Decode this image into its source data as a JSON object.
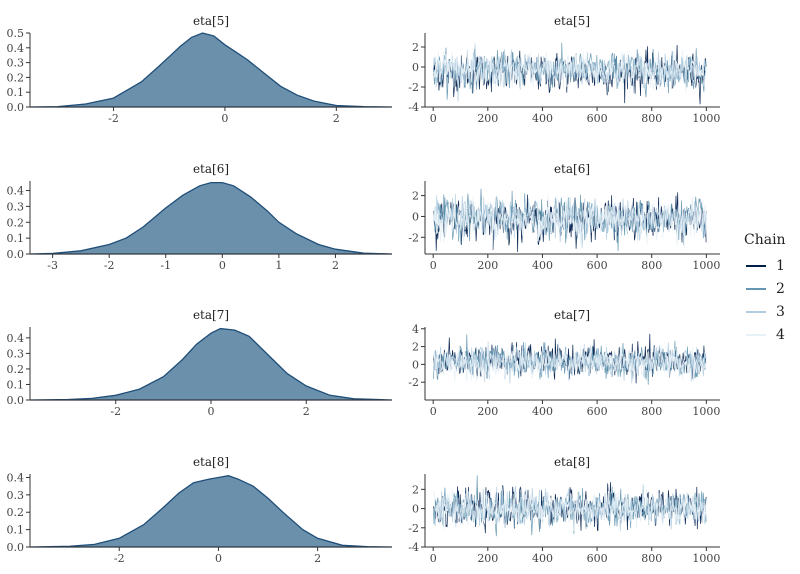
{
  "legend": {
    "title": "Chain",
    "entries": [
      {
        "label": "1",
        "color": "#011f4b"
      },
      {
        "label": "2",
        "color": "#6497b1"
      },
      {
        "label": "3",
        "color": "#b3cde0"
      },
      {
        "label": "4",
        "color": "#e6f0f7"
      }
    ]
  },
  "colors": {
    "density_fill": "#6b90ab",
    "density_line": "#1f4e79",
    "axis": "#333333"
  },
  "chart_data": [
    {
      "type": "area",
      "kind": "density",
      "title": "eta[5]",
      "xlim": [
        -3.5,
        3.0
      ],
      "ylim": [
        0,
        0.5
      ],
      "xticks": [
        -2,
        0,
        2
      ],
      "yticks": [
        0.0,
        0.1,
        0.2,
        0.3,
        0.4,
        0.5
      ],
      "x": [
        -3.5,
        -3,
        -2.5,
        -2,
        -1.5,
        -1.2,
        -1,
        -0.8,
        -0.6,
        -0.4,
        -0.2,
        0,
        0.2,
        0.4,
        0.7,
        1,
        1.3,
        1.6,
        2,
        2.5,
        3
      ],
      "y": [
        0,
        0.003,
        0.02,
        0.06,
        0.17,
        0.27,
        0.34,
        0.41,
        0.47,
        0.5,
        0.48,
        0.42,
        0.37,
        0.32,
        0.23,
        0.14,
        0.08,
        0.04,
        0.01,
        0.002,
        0
      ]
    },
    {
      "type": "line",
      "kind": "trace",
      "title": "eta[5]",
      "xlim": [
        -30,
        1050
      ],
      "ylim": [
        -4,
        3.4
      ],
      "xticks": [
        0,
        200,
        400,
        600,
        800,
        1000
      ],
      "yticks": [
        -4,
        -2,
        0,
        2
      ],
      "n_iter": 1000,
      "center": [
        -0.6,
        -0.3,
        -0.2,
        -0.4
      ],
      "spread": [
        0.9,
        0.85,
        0.8,
        0.8
      ]
    },
    {
      "type": "area",
      "kind": "density",
      "title": "eta[6]",
      "xlim": [
        -3.4,
        3.0
      ],
      "ylim": [
        0,
        0.46
      ],
      "xticks": [
        -3,
        -2,
        -1,
        0,
        1,
        2
      ],
      "yticks": [
        0.0,
        0.1,
        0.2,
        0.3,
        0.4
      ],
      "x": [
        -3.4,
        -3,
        -2.5,
        -2,
        -1.7,
        -1.4,
        -1,
        -0.7,
        -0.4,
        -0.2,
        0,
        0.2,
        0.5,
        0.8,
        1,
        1.3,
        1.7,
        2,
        2.5,
        3
      ],
      "y": [
        0,
        0.004,
        0.02,
        0.06,
        0.1,
        0.17,
        0.29,
        0.37,
        0.43,
        0.45,
        0.45,
        0.43,
        0.36,
        0.27,
        0.2,
        0.13,
        0.06,
        0.03,
        0.005,
        0
      ]
    },
    {
      "type": "line",
      "kind": "trace",
      "title": "eta[6]",
      "xlim": [
        -30,
        1050
      ],
      "ylim": [
        -3.6,
        3.4
      ],
      "xticks": [
        0,
        200,
        400,
        600,
        800,
        1000
      ],
      "yticks": [
        -2,
        0,
        2
      ],
      "n_iter": 1000,
      "center": [
        -0.3,
        -0.2,
        -0.1,
        -0.3
      ],
      "spread": [
        0.9,
        0.9,
        0.85,
        0.85
      ]
    },
    {
      "type": "area",
      "kind": "density",
      "title": "eta[7]",
      "xlim": [
        -3.8,
        3.8
      ],
      "ylim": [
        0,
        0.47
      ],
      "xticks": [
        -2,
        0,
        2
      ],
      "yticks": [
        0.0,
        0.1,
        0.2,
        0.3,
        0.4
      ],
      "x": [
        -3.8,
        -3,
        -2.5,
        -2,
        -1.5,
        -1,
        -0.6,
        -0.3,
        0,
        0.2,
        0.5,
        0.8,
        1,
        1.3,
        1.6,
        2,
        2.5,
        3,
        3.8
      ],
      "y": [
        0,
        0.003,
        0.01,
        0.03,
        0.07,
        0.15,
        0.26,
        0.36,
        0.43,
        0.46,
        0.45,
        0.41,
        0.35,
        0.26,
        0.17,
        0.09,
        0.03,
        0.008,
        0
      ]
    },
    {
      "type": "line",
      "kind": "trace",
      "title": "eta[7]",
      "xlim": [
        -30,
        1050
      ],
      "ylim": [
        -4,
        4.2
      ],
      "xticks": [
        0,
        200,
        400,
        600,
        800,
        1000
      ],
      "yticks": [
        -2,
        0,
        2,
        4
      ],
      "n_iter": 1000,
      "center": [
        0.4,
        0.3,
        0.3,
        0.2
      ],
      "spread": [
        0.85,
        0.85,
        0.8,
        0.8
      ]
    },
    {
      "type": "area",
      "kind": "density",
      "title": "eta[8]",
      "xlim": [
        -3.8,
        3.5
      ],
      "ylim": [
        0,
        0.42
      ],
      "xticks": [
        -2,
        0,
        2
      ],
      "yticks": [
        0.0,
        0.1,
        0.2,
        0.3,
        0.4
      ],
      "x": [
        -3.8,
        -3,
        -2.5,
        -2,
        -1.5,
        -1.1,
        -0.8,
        -0.5,
        -0.2,
        0,
        0.2,
        0.4,
        0.7,
        1,
        1.3,
        1.7,
        2,
        2.5,
        3,
        3.5
      ],
      "y": [
        0,
        0.004,
        0.015,
        0.05,
        0.13,
        0.23,
        0.31,
        0.37,
        0.39,
        0.4,
        0.41,
        0.39,
        0.35,
        0.28,
        0.2,
        0.1,
        0.05,
        0.01,
        0.002,
        0
      ]
    },
    {
      "type": "line",
      "kind": "trace",
      "title": "eta[8]",
      "xlim": [
        -30,
        1050
      ],
      "ylim": [
        -4,
        3.6
      ],
      "xticks": [
        0,
        200,
        400,
        600,
        800,
        1000
      ],
      "yticks": [
        -4,
        -2,
        0,
        2
      ],
      "n_iter": 1000,
      "center": [
        0.0,
        -0.1,
        0.1,
        0.0
      ],
      "spread": [
        0.9,
        0.85,
        0.85,
        0.8
      ]
    }
  ]
}
